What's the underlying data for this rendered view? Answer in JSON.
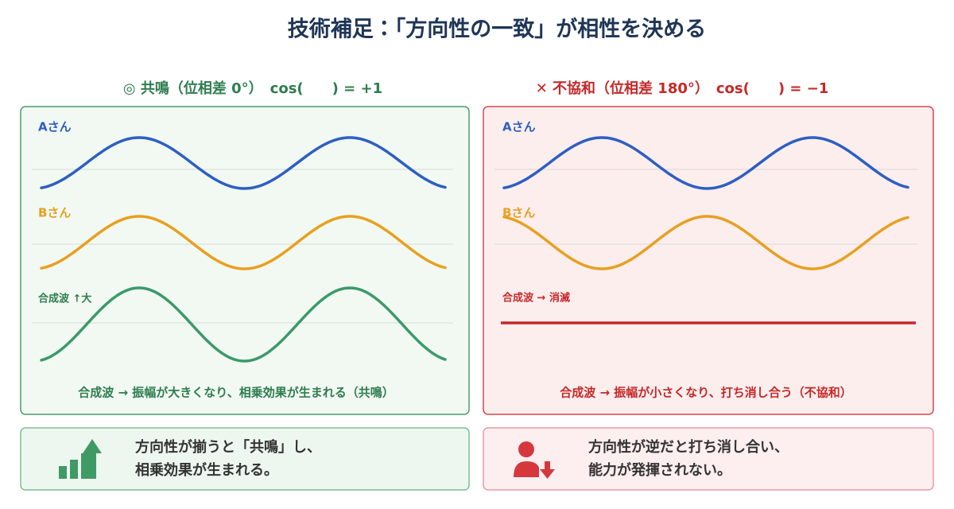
{
  "title": "技術補足：「方向性の一致」が相性を決める",
  "panels": [
    {
      "heading": "◎ 共鳴（位相差 0°）　cos(　　) = +1",
      "wave_a": "Aさん",
      "wave_b": "Bさん",
      "wave_sum": "合成波 ↑大",
      "caption": "合成波 → 振幅が大きくなり、相乗効果が生まれる（共鳴）"
    },
    {
      "heading": "✕ 不協和（位相差 180°）　cos(　　) = −1",
      "wave_a": "Aさん",
      "wave_b": "Bさん",
      "wave_sum": "合成波 → 消滅",
      "caption": "合成波 → 振幅が小さくなり、打ち消し合う（不協和）"
    }
  ],
  "notes": [
    {
      "lines": [
        "方向性が揃うと「共鳴」し、",
        "相乗効果が生まれる。"
      ]
    },
    {
      "lines": [
        "方向性が逆だと打ち消し合い、",
        "能力が発揮されない。"
      ]
    }
  ]
}
